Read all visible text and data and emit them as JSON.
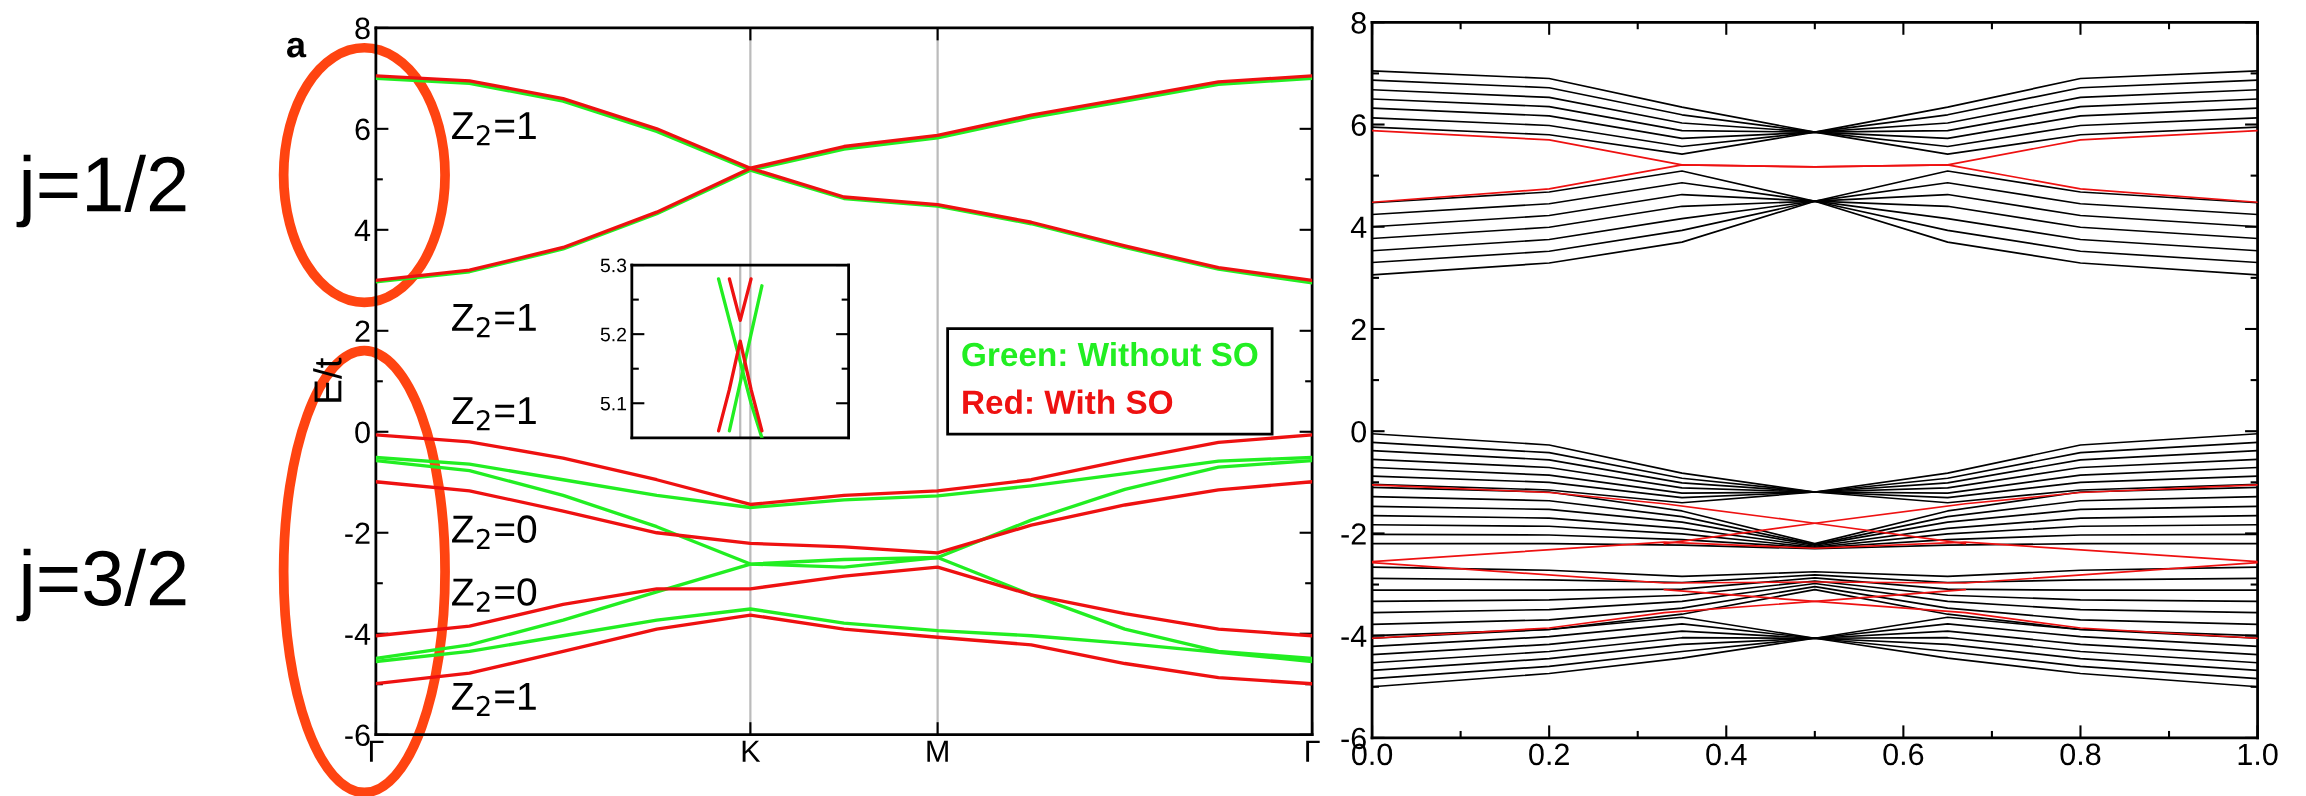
{
  "chart_data": [
    {
      "type": "line",
      "ylabel": "E/t",
      "ylim": [
        -6,
        8
      ],
      "categories": [
        "Γ",
        null,
        null,
        null,
        "K",
        null,
        "M",
        null,
        null,
        null,
        "Γ"
      ],
      "yticks": [
        -6,
        {
          "value": -5,
          "label": null
        },
        -4,
        {
          "value": -3,
          "label": null
        },
        -2,
        {
          "value": -1,
          "label": null
        },
        0,
        {
          "value": 1,
          "label": null
        },
        2,
        {
          "value": 3,
          "label": null
        },
        4,
        {
          "value": 5,
          "label": null
        },
        6,
        {
          "value": 7,
          "label": null
        },
        8
      ],
      "ref_lines": [
        {
          "axis": "x",
          "value": "K",
          "color": "#bbbbbb"
        },
        {
          "axis": "x",
          "value": "M",
          "color": "#bbbbbb"
        }
      ],
      "legend": "center right",
      "series": [
        {
          "name": "Green: Without SO",
          "color": "#22ee22",
          "values": [
            7.0,
            6.9,
            6.55,
            5.95,
            5.18,
            5.6,
            5.82,
            6.22,
            6.55,
            6.88,
            7.0
          ]
        },
        {
          "color": "#22ee22",
          "values": [
            2.97,
            3.17,
            3.62,
            4.32,
            5.18,
            4.62,
            4.47,
            4.12,
            3.65,
            3.22,
            2.95
          ]
        },
        {
          "color": "#22ee22",
          "values": [
            -0.51,
            -0.64,
            -0.95,
            -1.26,
            -1.5,
            -1.35,
            -1.27,
            -1.07,
            -0.83,
            -0.58,
            -0.51
          ]
        },
        {
          "color": "#22ee22",
          "values": [
            -0.57,
            -0.77,
            -1.26,
            -1.88,
            -2.62,
            -2.68,
            -2.49,
            -1.75,
            -1.14,
            -0.7,
            -0.57
          ]
        },
        {
          "color": "#22ee22",
          "values": [
            -4.49,
            -4.22,
            -3.73,
            -3.17,
            -2.62,
            -2.53,
            -2.49,
            -3.23,
            -3.91,
            -4.35,
            -4.49
          ]
        },
        {
          "color": "#22ee22",
          "values": [
            -4.55,
            -4.35,
            -4.04,
            -3.73,
            -3.51,
            -3.79,
            -3.94,
            -4.04,
            -4.19,
            -4.37,
            -4.55
          ]
        },
        {
          "name": "Red: With SO",
          "color": "#ee1111",
          "values": [
            7.05,
            6.95,
            6.6,
            6.0,
            5.22,
            5.65,
            5.87,
            6.27,
            6.6,
            6.93,
            7.05
          ]
        },
        {
          "color": "#ee1111",
          "values": [
            3.0,
            3.2,
            3.65,
            4.35,
            5.22,
            4.65,
            4.5,
            4.15,
            3.68,
            3.25,
            3.0
          ]
        },
        {
          "color": "#ee1111",
          "values": [
            -0.06,
            -0.2,
            -0.52,
            -0.95,
            -1.44,
            -1.26,
            -1.17,
            -0.95,
            -0.56,
            -0.21,
            -0.06
          ]
        },
        {
          "color": "#ee1111",
          "values": [
            -0.99,
            -1.17,
            -1.57,
            -2.0,
            -2.21,
            -2.28,
            -2.4,
            -1.85,
            -1.45,
            -1.15,
            -0.99
          ]
        },
        {
          "color": "#ee1111",
          "values": [
            -4.04,
            -3.85,
            -3.42,
            -3.11,
            -3.11,
            -2.86,
            -2.68,
            -3.23,
            -3.6,
            -3.91,
            -4.04
          ]
        },
        {
          "color": "#ee1111",
          "values": [
            -4.99,
            -4.78,
            -4.35,
            -3.91,
            -3.63,
            -3.91,
            -4.07,
            -4.22,
            -4.59,
            -4.87,
            -4.99
          ]
        }
      ],
      "annotations": [
        "a",
        "j=1/2",
        "j=3/2",
        "Z$_{2}$=1",
        "Z$_{2}$=1",
        "Z$_{2}$=1",
        "Z$_{2}$=0",
        "Z$_{2}$=0",
        "Z$_{2}$=1"
      ]
    },
    {
      "type": "line",
      "categories": [
        null,
        null,
        null,
        null,
        null,
        null,
        null,
        null,
        null,
        null,
        null,
        null,
        null,
        null,
        null,
        null,
        null,
        null,
        null,
        null,
        null
      ],
      "ylim": [
        5.05,
        5.3
      ],
      "yticks": [
        5.1,
        {
          "value": 5.15,
          "label": null
        },
        5.2,
        {
          "value": 5.25,
          "label": null
        },
        5.3
      ],
      "tick_labels": "y",
      "series": [
        {
          "color": "#22ee22",
          "values": [
            null,
            null,
            null,
            null,
            null,
            null,
            null,
            null,
            5.28,
            5.22,
            5.16,
            5.1,
            5.05,
            null,
            null,
            null,
            null,
            null,
            null,
            null,
            null
          ]
        },
        {
          "color": "#22ee22",
          "values": [
            null,
            null,
            null,
            null,
            null,
            null,
            null,
            null,
            null,
            5.06,
            5.13,
            5.2,
            5.27,
            null,
            null,
            null,
            null,
            null,
            null,
            null,
            null
          ]
        },
        {
          "color": "#ee1111",
          "values": [
            null,
            null,
            null,
            null,
            null,
            null,
            null,
            null,
            null,
            5.28,
            5.22,
            5.28,
            null,
            null,
            null,
            null,
            null,
            null,
            null,
            null,
            null
          ]
        },
        {
          "color": "#ee1111",
          "values": [
            null,
            null,
            null,
            null,
            null,
            null,
            null,
            null,
            5.06,
            5.12,
            5.19,
            5.12,
            5.06,
            null,
            null,
            null,
            null,
            null,
            null,
            null,
            null
          ]
        }
      ]
    },
    {
      "type": "line",
      "xlim": [
        0,
        1
      ],
      "ylim": [
        -6,
        8
      ],
      "xticks": [
        {
          "value": 0,
          "label": "0.0"
        },
        {
          "value": 0.1,
          "label": null
        },
        0.2,
        {
          "value": 0.3,
          "label": null
        },
        0.4,
        {
          "value": 0.5,
          "label": null
        },
        0.6,
        {
          "value": 0.7,
          "label": null
        },
        0.8,
        {
          "value": 0.9,
          "label": null
        },
        {
          "value": 1,
          "label": "1.0"
        }
      ],
      "yticks": [
        -6,
        {
          "value": -5,
          "label": null
        },
        -4,
        {
          "value": -3,
          "label": null
        },
        -2,
        {
          "value": -1,
          "label": null
        },
        0,
        {
          "value": 1,
          "label": null
        },
        2,
        {
          "value": 3,
          "label": null
        },
        4,
        {
          "value": 5,
          "label": null
        },
        6,
        {
          "value": 7,
          "label": null
        },
        8
      ],
      "x": [
        0,
        0.2,
        0.35,
        0.5,
        0.65,
        0.8,
        1
      ],
      "series": [
        {
          "color": "#000000",
          "values": [
            5.95,
            5.8,
            5.42,
            5.85,
            5.42,
            5.8,
            5.95
          ]
        },
        {
          "color": "#000000",
          "values": [
            6.13,
            5.98,
            5.57,
            5.85,
            5.57,
            5.98,
            6.13
          ]
        },
        {
          "color": "#000000",
          "values": [
            6.32,
            6.17,
            5.73,
            5.85,
            5.73,
            6.17,
            6.32
          ]
        },
        {
          "color": "#000000",
          "values": [
            6.5,
            6.35,
            5.88,
            5.85,
            5.88,
            6.35,
            6.5
          ]
        },
        {
          "color": "#000000",
          "values": [
            6.68,
            6.53,
            6.03,
            5.85,
            6.03,
            6.53,
            6.68
          ]
        },
        {
          "color": "#000000",
          "values": [
            6.87,
            6.72,
            6.19,
            5.85,
            6.19,
            6.72,
            6.87
          ]
        },
        {
          "color": "#000000",
          "values": [
            7.05,
            6.9,
            6.34,
            5.85,
            6.34,
            6.9,
            7.05
          ]
        },
        {
          "color": "#000000",
          "values": [
            3.06,
            3.29,
            3.7,
            4.5,
            3.7,
            3.29,
            3.06
          ]
        },
        {
          "color": "#000000",
          "values": [
            3.3,
            3.52,
            3.93,
            4.5,
            3.93,
            3.52,
            3.3
          ]
        },
        {
          "color": "#000000",
          "values": [
            3.53,
            3.75,
            4.16,
            4.5,
            4.16,
            3.75,
            3.53
          ]
        },
        {
          "color": "#000000",
          "values": [
            3.77,
            3.99,
            4.4,
            4.5,
            4.4,
            3.99,
            3.77
          ]
        },
        {
          "color": "#000000",
          "values": [
            4.0,
            4.22,
            4.63,
            4.5,
            4.63,
            4.22,
            4.0
          ]
        },
        {
          "color": "#000000",
          "values": [
            4.24,
            4.45,
            4.86,
            4.5,
            4.86,
            4.45,
            4.24
          ]
        },
        {
          "color": "#000000",
          "values": [
            4.47,
            4.68,
            5.09,
            4.5,
            5.09,
            4.68,
            4.47
          ]
        },
        {
          "color": "#000000",
          "values": [
            -1.04,
            -1.15,
            -1.4,
            -1.19,
            -1.4,
            -1.15,
            -1.04
          ]
        },
        {
          "color": "#000000",
          "values": [
            -0.88,
            -1.0,
            -1.3,
            -1.19,
            -1.3,
            -1.0,
            -0.88
          ]
        },
        {
          "color": "#000000",
          "values": [
            -0.71,
            -0.86,
            -1.21,
            -1.19,
            -1.21,
            -0.86,
            -0.71
          ]
        },
        {
          "color": "#000000",
          "values": [
            -0.55,
            -0.71,
            -1.11,
            -1.19,
            -1.11,
            -0.71,
            -0.55
          ]
        },
        {
          "color": "#000000",
          "values": [
            -0.38,
            -0.56,
            -1.01,
            -1.19,
            -1.01,
            -0.56,
            -0.38
          ]
        },
        {
          "color": "#000000",
          "values": [
            -0.22,
            -0.42,
            -0.92,
            -1.19,
            -0.92,
            -0.42,
            -0.22
          ]
        },
        {
          "color": "#000000",
          "values": [
            -0.05,
            -0.27,
            -0.82,
            -1.19,
            -0.82,
            -0.27,
            -0.05
          ]
        },
        {
          "color": "#000000",
          "values": [
            -2.2,
            -2.2,
            -2.23,
            -2.3,
            -2.23,
            -2.2,
            -2.2
          ]
        },
        {
          "color": "#000000",
          "values": [
            -2.02,
            -2.03,
            -2.12,
            -2.28,
            -2.12,
            -2.03,
            -2.02
          ]
        },
        {
          "color": "#000000",
          "values": [
            -1.83,
            -1.86,
            -2.01,
            -2.27,
            -2.01,
            -1.86,
            -1.83
          ]
        },
        {
          "color": "#000000",
          "values": [
            -1.65,
            -1.7,
            -1.9,
            -2.25,
            -1.9,
            -1.7,
            -1.65
          ]
        },
        {
          "color": "#000000",
          "values": [
            -1.47,
            -1.53,
            -1.78,
            -2.23,
            -1.78,
            -1.53,
            -1.47
          ]
        },
        {
          "color": "#000000",
          "values": [
            -1.28,
            -1.36,
            -1.67,
            -2.22,
            -1.67,
            -1.36,
            -1.28
          ]
        },
        {
          "color": "#000000",
          "values": [
            -1.1,
            -1.19,
            -1.56,
            -2.2,
            -1.56,
            -1.19,
            -1.1
          ]
        },
        {
          "color": "#000000",
          "values": [
            -4.0,
            -3.88,
            -3.58,
            -3.1,
            -3.58,
            -3.88,
            -4.0
          ]
        },
        {
          "color": "#000000",
          "values": [
            -3.78,
            -3.69,
            -3.46,
            -3.04,
            -3.46,
            -3.69,
            -3.78
          ]
        },
        {
          "color": "#000000",
          "values": [
            -3.55,
            -3.49,
            -3.33,
            -2.98,
            -3.33,
            -3.49,
            -3.55
          ]
        },
        {
          "color": "#000000",
          "values": [
            -3.33,
            -3.3,
            -3.21,
            -2.93,
            -3.21,
            -3.3,
            -3.33
          ]
        },
        {
          "color": "#000000",
          "values": [
            -3.11,
            -3.11,
            -3.09,
            -2.87,
            -3.09,
            -3.11,
            -3.11
          ]
        },
        {
          "color": "#000000",
          "values": [
            -2.88,
            -2.91,
            -2.96,
            -2.81,
            -2.96,
            -2.91,
            -2.88
          ]
        },
        {
          "color": "#000000",
          "values": [
            -2.66,
            -2.72,
            -2.84,
            -2.75,
            -2.84,
            -2.72,
            -2.66
          ]
        },
        {
          "color": "#000000",
          "values": [
            -5.0,
            -4.74,
            -4.44,
            -4.05,
            -4.44,
            -4.74,
            -5.0
          ]
        },
        {
          "color": "#000000",
          "values": [
            -4.84,
            -4.6,
            -4.31,
            -4.05,
            -4.31,
            -4.6,
            -4.84
          ]
        },
        {
          "color": "#000000",
          "values": [
            -4.68,
            -4.45,
            -4.17,
            -4.05,
            -4.17,
            -4.45,
            -4.68
          ]
        },
        {
          "color": "#000000",
          "values": [
            -4.53,
            -4.31,
            -4.04,
            -4.05,
            -4.04,
            -4.31,
            -4.53
          ]
        },
        {
          "color": "#000000",
          "values": [
            -4.37,
            -4.17,
            -3.91,
            -4.05,
            -3.91,
            -4.17,
            -4.37
          ]
        },
        {
          "color": "#000000",
          "values": [
            -4.21,
            -4.02,
            -3.77,
            -4.05,
            -3.77,
            -4.02,
            -4.21
          ]
        },
        {
          "color": "#000000",
          "values": [
            -4.05,
            -3.88,
            -3.64,
            -4.05,
            -3.64,
            -3.88,
            -4.05
          ]
        },
        {
          "color": "#ee1111",
          "values": [
            5.88,
            5.7,
            5.21,
            5.17,
            5.21,
            5.7,
            5.88
          ]
        },
        {
          "color": "#ee1111",
          "values": [
            4.48,
            4.74,
            5.21,
            5.17,
            5.21,
            4.74,
            4.48
          ]
        },
        {
          "color": "#ee1111",
          "x": [
            0,
            0.2,
            0.33,
            0.5,
            0.67
          ],
          "values": [
            -1.05,
            -1.2,
            -1.42,
            -1.8,
            -2.2
          ]
        },
        {
          "color": "#ee1111",
          "x": [
            0.33,
            0.5,
            0.67,
            0.8,
            1
          ],
          "values": [
            -2.2,
            -1.8,
            -1.42,
            -1.2,
            -1.05
          ]
        },
        {
          "color": "#ee1111",
          "x": [
            0,
            0.33,
            0.5,
            0.67,
            1
          ],
          "values": [
            -2.55,
            -2.17,
            -2.29,
            -2.17,
            -2.55
          ]
        },
        {
          "color": "#ee1111",
          "x": [
            0,
            0.33,
            0.5,
            0.67,
            1
          ],
          "values": [
            -2.57,
            -2.97,
            -2.95,
            -2.97,
            -2.57
          ]
        },
        {
          "color": "#ee1111",
          "x": [
            0,
            0.2,
            0.33,
            0.5,
            0.67
          ],
          "values": [
            -4.05,
            -3.85,
            -3.55,
            -3.33,
            -3.1
          ]
        },
        {
          "color": "#ee1111",
          "x": [
            0.33,
            0.5,
            0.67,
            0.8,
            1
          ],
          "values": [
            -3.1,
            -3.33,
            -3.55,
            -3.85,
            -4.05
          ]
        }
      ]
    }
  ]
}
